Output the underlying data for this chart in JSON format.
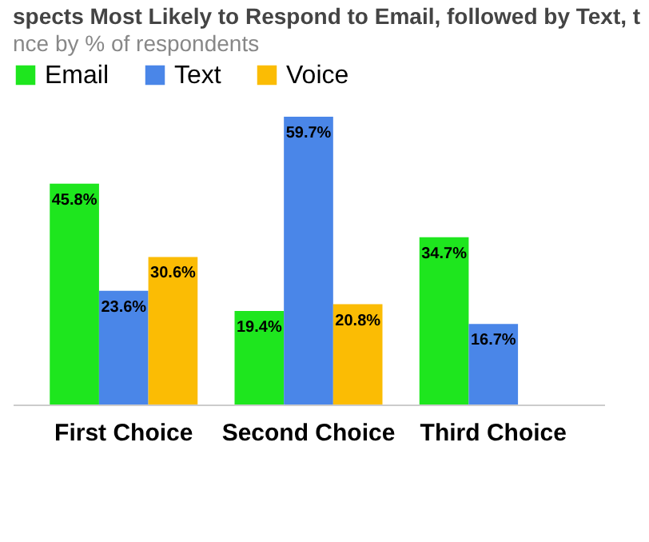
{
  "chart_data": {
    "type": "bar",
    "title": "spects Most Likely to Respond to Email, followed by Text, t",
    "subtitle": "nce by % of respondents",
    "categories": [
      "First Choice",
      "Second Choice",
      "Third Choice"
    ],
    "series": [
      {
        "name": "Email",
        "color": "#1ee61e",
        "values": [
          45.8,
          19.4,
          34.7
        ],
        "value_labels": [
          "45.8%",
          "19.4%",
          "34.7%"
        ]
      },
      {
        "name": "Text",
        "color": "#4a86e8",
        "values": [
          23.6,
          59.7,
          16.7
        ],
        "value_labels": [
          "23.6%",
          "59.7%",
          "16.7%"
        ]
      },
      {
        "name": "Voice",
        "color": "#fbbc04",
        "values": [
          30.6,
          20.8,
          null
        ],
        "value_labels": [
          "30.6%",
          "20.8%",
          null
        ]
      }
    ],
    "legend": "top"
  }
}
